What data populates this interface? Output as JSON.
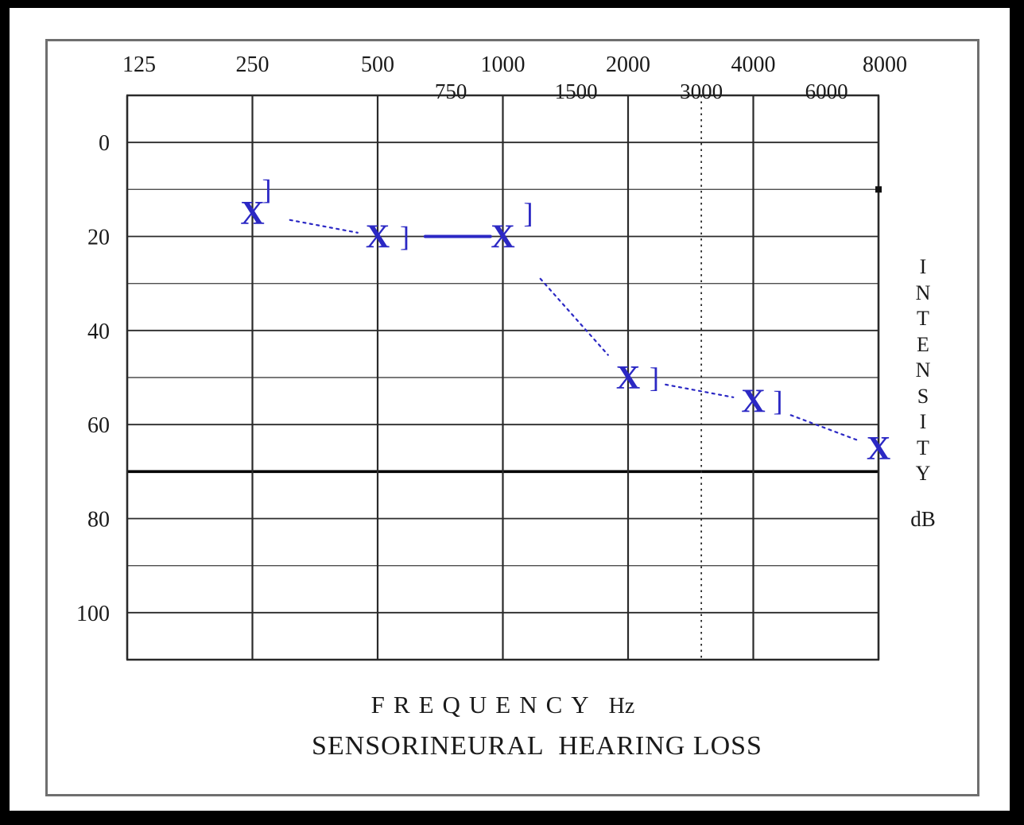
{
  "chart_data": {
    "type": "line",
    "variant": "audiogram",
    "title": "SENSORINEURAL  HEARING LOSS",
    "xlabel": "FREQUENCY",
    "xlabel_unit": "Hz",
    "ylabel_vertical": "INTENSITY",
    "ylabel_unit": "dB",
    "x_axis": {
      "scale": "log2",
      "unit": "Hz",
      "range": [
        125,
        8000
      ],
      "major_ticks": [
        125,
        250,
        500,
        1000,
        2000,
        4000,
        8000
      ],
      "minor_ticks": [
        750,
        1500,
        3000,
        6000
      ],
      "gridlines_at": [
        125,
        250,
        500,
        1000,
        2000,
        4000,
        8000
      ],
      "dotted_gridline_at": 3000
    },
    "y_axis": {
      "unit": "dB",
      "range": [
        -10,
        110
      ],
      "gridline_step": 10,
      "labeled_ticks": [
        0,
        20,
        40,
        60,
        80,
        100
      ],
      "bold_gridline_at": 70,
      "increases": "downward"
    },
    "series": [
      {
        "name": "air-conduction-left-ear",
        "symbol": "X",
        "connected": true,
        "points": [
          {
            "f": 250,
            "db": 15
          },
          {
            "f": 500,
            "db": 20
          },
          {
            "f": 1000,
            "db": 20
          },
          {
            "f": 2000,
            "db": 50
          },
          {
            "f": 4000,
            "db": 55
          },
          {
            "f": 8000,
            "db": 65
          }
        ],
        "segment_styles": [
          "dotted",
          "solid",
          "dotted",
          "dotted",
          "dotted"
        ]
      },
      {
        "name": "bone-conduction-masked",
        "symbol": "]",
        "connected": false,
        "points": [
          {
            "f": 250,
            "db": 10,
            "dx": 18
          },
          {
            "f": 500,
            "db": 20,
            "dx": 34
          },
          {
            "f": 1000,
            "db": 15,
            "dx": 32
          },
          {
            "f": 2000,
            "db": 50,
            "dx": 33
          },
          {
            "f": 4000,
            "db": 55,
            "dx": 31
          }
        ]
      }
    ],
    "colors": {
      "marks": "#2b28c4",
      "grid": "#2a2a2a",
      "grid_minor": "#4d4d4d",
      "bold_line": "#000000",
      "text": "#1a1a1a"
    },
    "grid": true,
    "legend_position": "none"
  }
}
